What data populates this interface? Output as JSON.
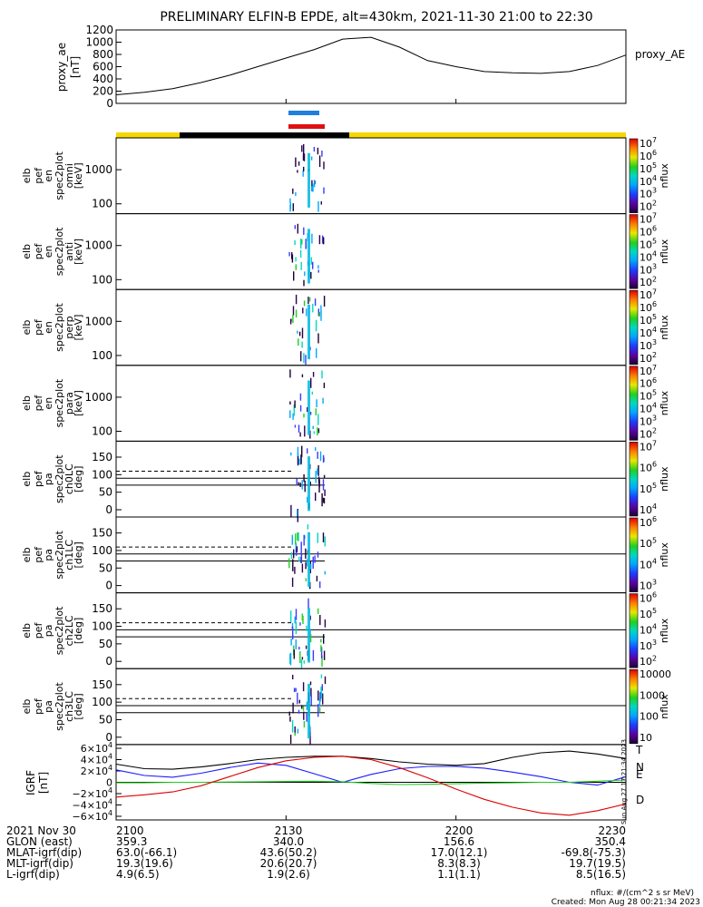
{
  "title": "PRELIMINARY ELFIN-B EPDE, alt=430km, 2021-11-30 21:00 to 22:30",
  "colors": {
    "sunlit_bar": "#f5d800",
    "shadow_bar": "#000000",
    "ifov_blue": "#1e7fe0",
    "ifov_red": "#e01010",
    "T": "#000000",
    "N": "#1a1aff",
    "E": "#22cc22",
    "D": "#dd0000"
  },
  "chart_data": [
    {
      "type": "line",
      "panel": "proxy_ae",
      "ylabel": [
        "proxy_ae",
        "[nT]"
      ],
      "legend": "proxy_AE",
      "yticks": [
        "1200",
        "1000",
        "800",
        "600",
        "400",
        "200",
        "0"
      ],
      "ylim": [
        0,
        1200
      ],
      "x_minutes": [
        0,
        5,
        10,
        15,
        20,
        25,
        30,
        35,
        40,
        45,
        50,
        55,
        60,
        65,
        70,
        75,
        80,
        85,
        90
      ],
      "values": [
        140,
        180,
        240,
        340,
        460,
        600,
        740,
        880,
        1050,
        1080,
        920,
        700,
        600,
        520,
        500,
        490,
        520,
        620,
        790
      ]
    },
    {
      "type": "heatmap",
      "panel": "spectrogram",
      "rows": [
        {
          "ylabel": [
            "elb",
            "pef",
            "en",
            "spec2plot",
            "omni",
            "[keV]"
          ],
          "yticks": [
            "1000",
            "100"
          ],
          "cb_ticks": [
            "10^7",
            "10^6",
            "10^5",
            "10^4",
            "10^3",
            "10^2"
          ],
          "cb_label": "nflux"
        },
        {
          "ylabel": [
            "elb",
            "pef",
            "en",
            "spec2plot",
            "anti",
            "[keV]"
          ],
          "yticks": [
            "1000",
            "100"
          ],
          "cb_ticks": [
            "10^7",
            "10^6",
            "10^5",
            "10^4",
            "10^3",
            "10^2"
          ],
          "cb_label": "nflux"
        },
        {
          "ylabel": [
            "elb",
            "pef",
            "en",
            "spec2plot",
            "perp",
            "[keV]"
          ],
          "yticks": [
            "1000",
            "100"
          ],
          "cb_ticks": [
            "10^7",
            "10^6",
            "10^5",
            "10^4",
            "10^3",
            "10^2"
          ],
          "cb_label": "nflux"
        },
        {
          "ylabel": [
            "elb",
            "pef",
            "en",
            "spec2plot",
            "para",
            "[keV]"
          ],
          "yticks": [
            "1000",
            "100"
          ],
          "cb_ticks": [
            "10^7",
            "10^6",
            "10^5",
            "10^4",
            "10^3",
            "10^2"
          ],
          "cb_label": "nflux"
        },
        {
          "ylabel": [
            "elb",
            "pef",
            "pa",
            "spec2plot",
            "ch0LC",
            "[deg]"
          ],
          "yticks": [
            "150",
            "100",
            "50",
            "0"
          ],
          "cb_ticks": [
            "10^7",
            "10^6",
            "10^5",
            "10^4"
          ],
          "cb_label": "nflux"
        },
        {
          "ylabel": [
            "elb",
            "pef",
            "pa",
            "spec2plot",
            "ch1LC",
            "[deg]"
          ],
          "yticks": [
            "150",
            "100",
            "50",
            "0"
          ],
          "cb_ticks": [
            "10^6",
            "10^5",
            "10^4",
            "10^3"
          ],
          "cb_label": "nflux"
        },
        {
          "ylabel": [
            "elb",
            "pef",
            "pa",
            "spec2plot",
            "ch2LC",
            "[deg]"
          ],
          "yticks": [
            "150",
            "100",
            "50",
            "0"
          ],
          "cb_ticks": [
            "10^6",
            "10^5",
            "10^4",
            "10^3",
            "10^2"
          ],
          "cb_label": "nflux"
        },
        {
          "ylabel": [
            "elb",
            "pef",
            "pa",
            "spec2plot",
            "ch3LC",
            "[deg]"
          ],
          "yticks": [
            "150",
            "100",
            "50",
            "0"
          ],
          "cb_ticks": [
            "10000",
            "1000",
            "100",
            "10"
          ],
          "cb_label": "nflux"
        }
      ]
    },
    {
      "type": "line",
      "panel": "igrf",
      "ylabel": [
        "IGRF",
        "[nT]"
      ],
      "yticks": [
        "6×10^4",
        "4×10^4",
        "2×10^4",
        "0",
        "−2×10^4",
        "−4×10^4",
        "−6×10^4"
      ],
      "ylim": [
        -60000,
        60000
      ],
      "x_minutes": [
        0,
        5,
        10,
        15,
        20,
        25,
        30,
        35,
        40,
        45,
        50,
        55,
        60,
        65,
        70,
        75,
        80,
        85,
        90
      ],
      "series": [
        {
          "name": "T",
          "values": [
            32000,
            24000,
            23000,
            27000,
            33000,
            40000,
            44000,
            46000,
            46000,
            42000,
            36000,
            32000,
            30000,
            33000,
            44000,
            52000,
            55000,
            50000,
            42000
          ]
        },
        {
          "name": "N",
          "values": [
            22000,
            12000,
            9000,
            16000,
            26000,
            34000,
            30000,
            15000,
            0,
            14000,
            24000,
            28000,
            28000,
            25000,
            18000,
            10000,
            0,
            -5000,
            10000
          ]
        },
        {
          "name": "E",
          "values": [
            -1000,
            -1000,
            0,
            0,
            500,
            1000,
            1500,
            2000,
            1000,
            -2000,
            -4000,
            -3500,
            -2500,
            -1500,
            -1000,
            0,
            0,
            2000,
            4000
          ]
        },
        {
          "name": "D",
          "values": [
            -26000,
            -22000,
            -17000,
            -6000,
            10000,
            26000,
            38000,
            44000,
            46000,
            40000,
            26000,
            8000,
            -12000,
            -30000,
            -44000,
            -54000,
            -58000,
            -50000,
            -38000
          ]
        }
      ],
      "side_label": "Sun Aug 27 17:21:34 2023"
    }
  ],
  "x_axis": {
    "ticks": [
      "2100",
      "2130",
      "2200",
      "2230"
    ],
    "rows": [
      {
        "label": "2021 Nov 30",
        "values": [
          "2100",
          "2130",
          "2200",
          "2230"
        ]
      },
      {
        "label": "GLON (east)",
        "values": [
          "359.3",
          "340.0",
          "156.6",
          "350.4"
        ]
      },
      {
        "label": "MLAT-igrf(dip)",
        "values": [
          "63.0(-66.1)",
          "43.6(50.2)",
          "17.0(12.1)",
          "-69.8(-75.3)"
        ]
      },
      {
        "label": "MLT-igrf(dip)",
        "values": [
          "19.3(19.6)",
          "20.6(20.7)",
          "8.3(8.3)",
          "19.7(19.5)"
        ]
      },
      {
        "label": "L-igrf(dip)",
        "values": [
          "4.9(6.5)",
          "1.9(2.6)",
          "1.1(1.1)",
          "8.5(16.5)"
        ]
      }
    ]
  },
  "footer": {
    "units": "nflux: #/(cm^2 s sr MeV)",
    "created": "Created: Mon Aug 28 00:21:34 2023"
  }
}
